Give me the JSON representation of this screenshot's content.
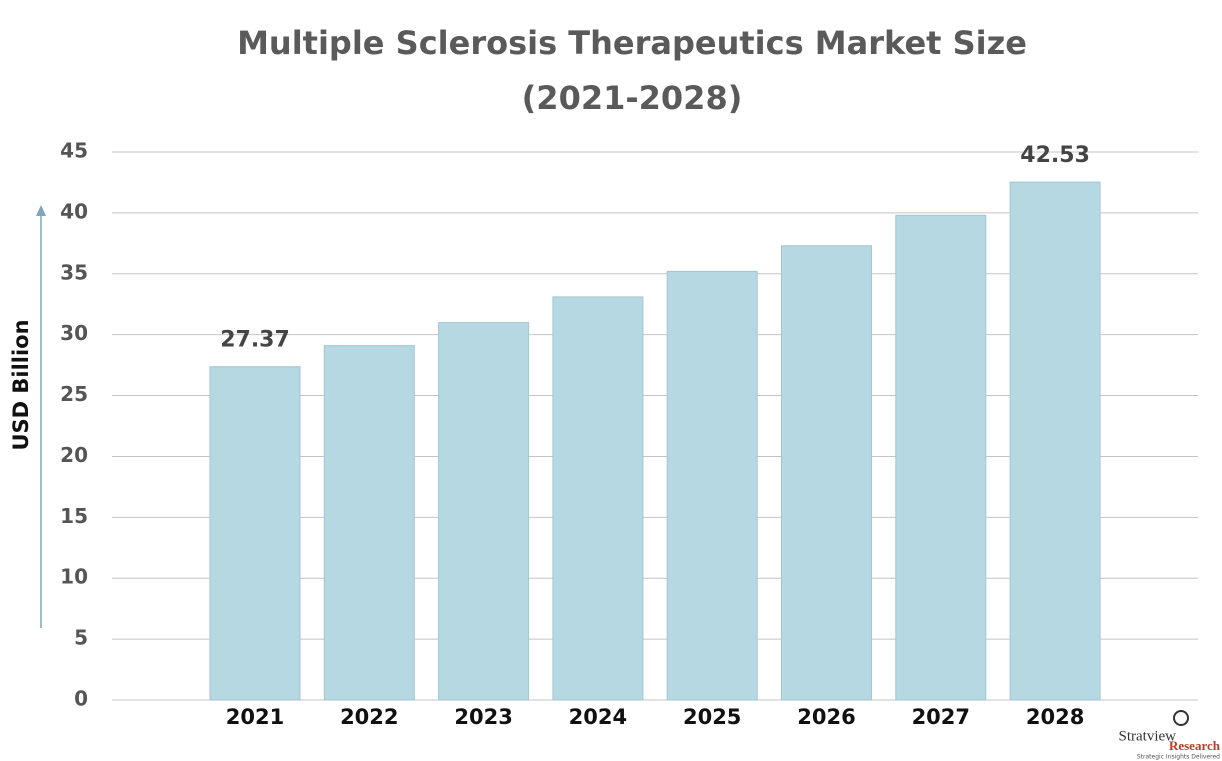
{
  "chart_data": {
    "type": "bar",
    "title": "Multiple Sclerosis Therapeutics Market Size",
    "subtitle": "(2021-2028)",
    "y_label": "USD Billion",
    "categories": [
      "2021",
      "2022",
      "2023",
      "2024",
      "2025",
      "2026",
      "2027",
      "2028"
    ],
    "values": [
      27.37,
      29.1,
      31.0,
      33.1,
      35.2,
      37.3,
      39.8,
      42.53
    ],
    "value_labels": [
      "27.37",
      null,
      null,
      null,
      null,
      null,
      null,
      "42.53"
    ],
    "color": "#b5d8e2",
    "ylim": [
      0,
      45
    ],
    "yticks": [
      0,
      5,
      10,
      15,
      20,
      25,
      30,
      35,
      40,
      45
    ],
    "grid": true
  },
  "logo": {
    "name": "Stratview",
    "name2": "Research",
    "tagline": "Strategic Insights Delivered"
  }
}
